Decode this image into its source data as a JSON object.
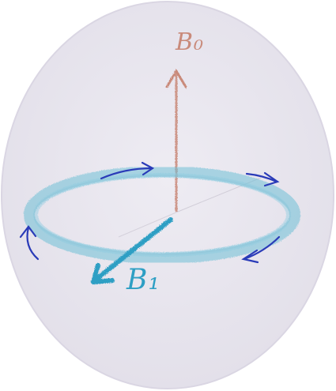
{
  "labels": {
    "b0": "B₀",
    "b1": "B₁"
  },
  "colors": {
    "background_oval": "#e7e4ef",
    "oval_edge": "#d9d5e2",
    "b0_pencil": "#c98a7a",
    "precession_ring": "#6fbfd6",
    "b1_vector": "#2e9fc4",
    "direction_arrows": "#2a3bb8",
    "guide_lines": "#bfbbc6"
  },
  "icons": {
    "direction_arrow": "curved-arrow-icon"
  }
}
